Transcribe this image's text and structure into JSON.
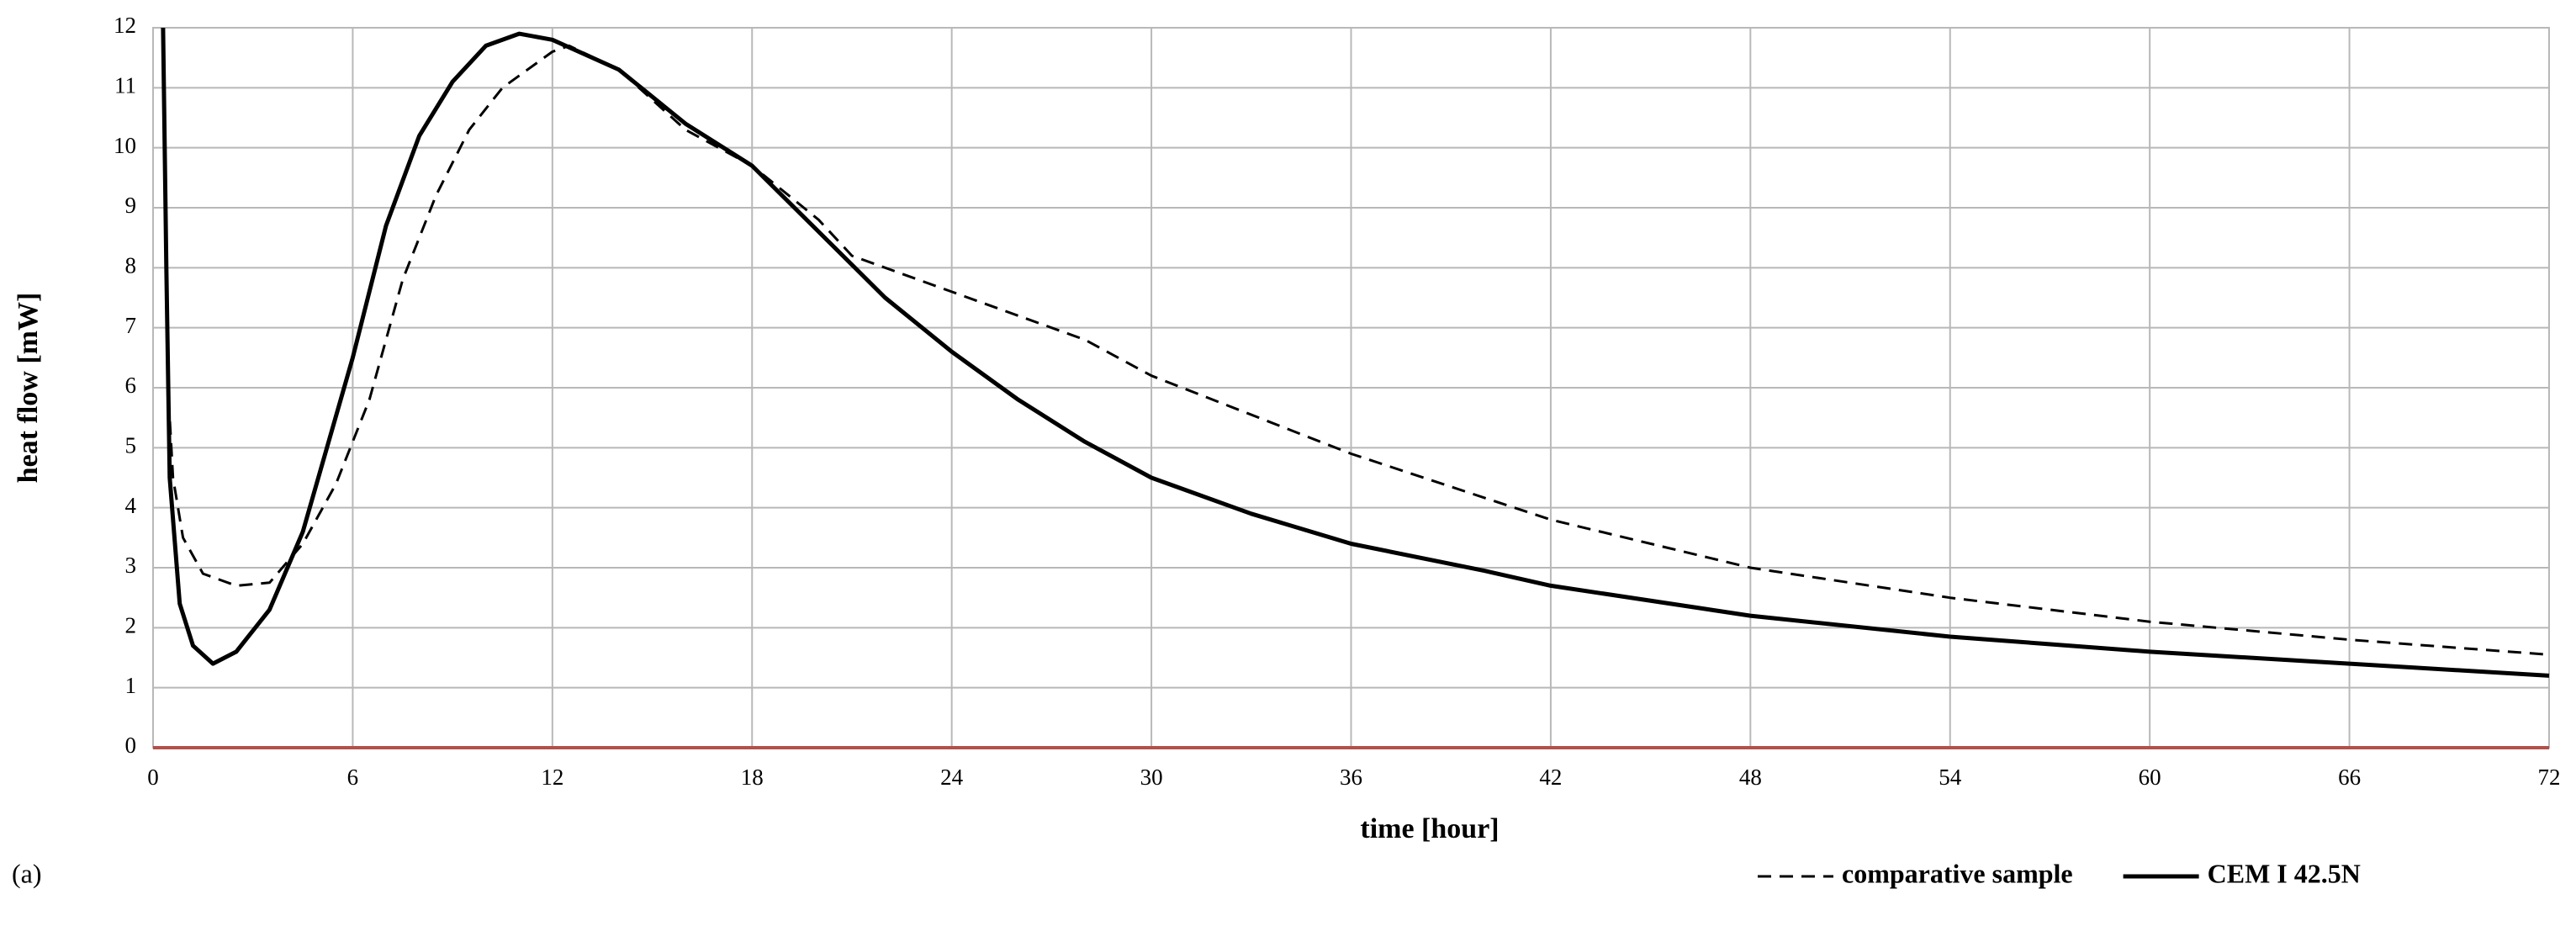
{
  "chart_data": {
    "type": "line",
    "panel_label": "(a)",
    "xlabel": "time [hour]",
    "ylabel": "heat flow [mW]",
    "xlim": [
      0,
      72
    ],
    "xticks": [
      0,
      6,
      12,
      18,
      24,
      30,
      36,
      42,
      48,
      54,
      60,
      66,
      72
    ],
    "ylim": [
      0,
      12
    ],
    "yticks": [
      0,
      1,
      2,
      3,
      4,
      5,
      6,
      7,
      8,
      9,
      10,
      11,
      12
    ],
    "grid": true,
    "grid_color": "#b8b8b8",
    "zero_line_color": "#b5504a",
    "legend": "bottom right",
    "series": [
      {
        "name": "comparative sample",
        "color": "#000000",
        "dash": "dashed",
        "x": [
          0.3,
          0.45,
          0.6,
          0.9,
          1.5,
          2.5,
          3.5,
          4.5,
          5.5,
          6.5,
          7.5,
          8.5,
          9.5,
          10.5,
          12,
          12.5,
          14,
          16,
          18,
          20,
          21,
          24,
          28,
          30,
          36,
          42,
          48,
          54,
          60,
          66,
          72
        ],
        "values": [
          12,
          6,
          4.5,
          3.5,
          2.9,
          2.7,
          2.75,
          3.4,
          4.4,
          5.8,
          7.8,
          9.2,
          10.3,
          11.0,
          11.6,
          11.7,
          11.3,
          10.3,
          9.7,
          8.8,
          8.2,
          7.6,
          6.8,
          6.2,
          4.9,
          3.8,
          3.0,
          2.5,
          2.1,
          1.8,
          1.55
        ]
      },
      {
        "name": "CEM I 42.5N",
        "color": "#000000",
        "dash": "solid",
        "x": [
          0.3,
          0.4,
          0.5,
          0.8,
          1.2,
          1.8,
          2.5,
          3.5,
          4.5,
          6,
          7,
          8,
          9,
          10,
          11,
          12,
          14,
          16,
          18,
          20,
          22,
          24,
          26,
          28,
          30,
          33,
          36,
          40,
          42,
          48,
          54,
          60,
          66,
          72
        ],
        "values": [
          12,
          8,
          4.5,
          2.4,
          1.7,
          1.4,
          1.6,
          2.3,
          3.6,
          6.5,
          8.7,
          10.2,
          11.1,
          11.7,
          11.9,
          11.8,
          11.3,
          10.4,
          9.7,
          8.6,
          7.5,
          6.6,
          5.8,
          5.1,
          4.5,
          3.9,
          3.4,
          2.95,
          2.7,
          2.2,
          1.85,
          1.6,
          1.4,
          1.2
        ]
      }
    ]
  }
}
